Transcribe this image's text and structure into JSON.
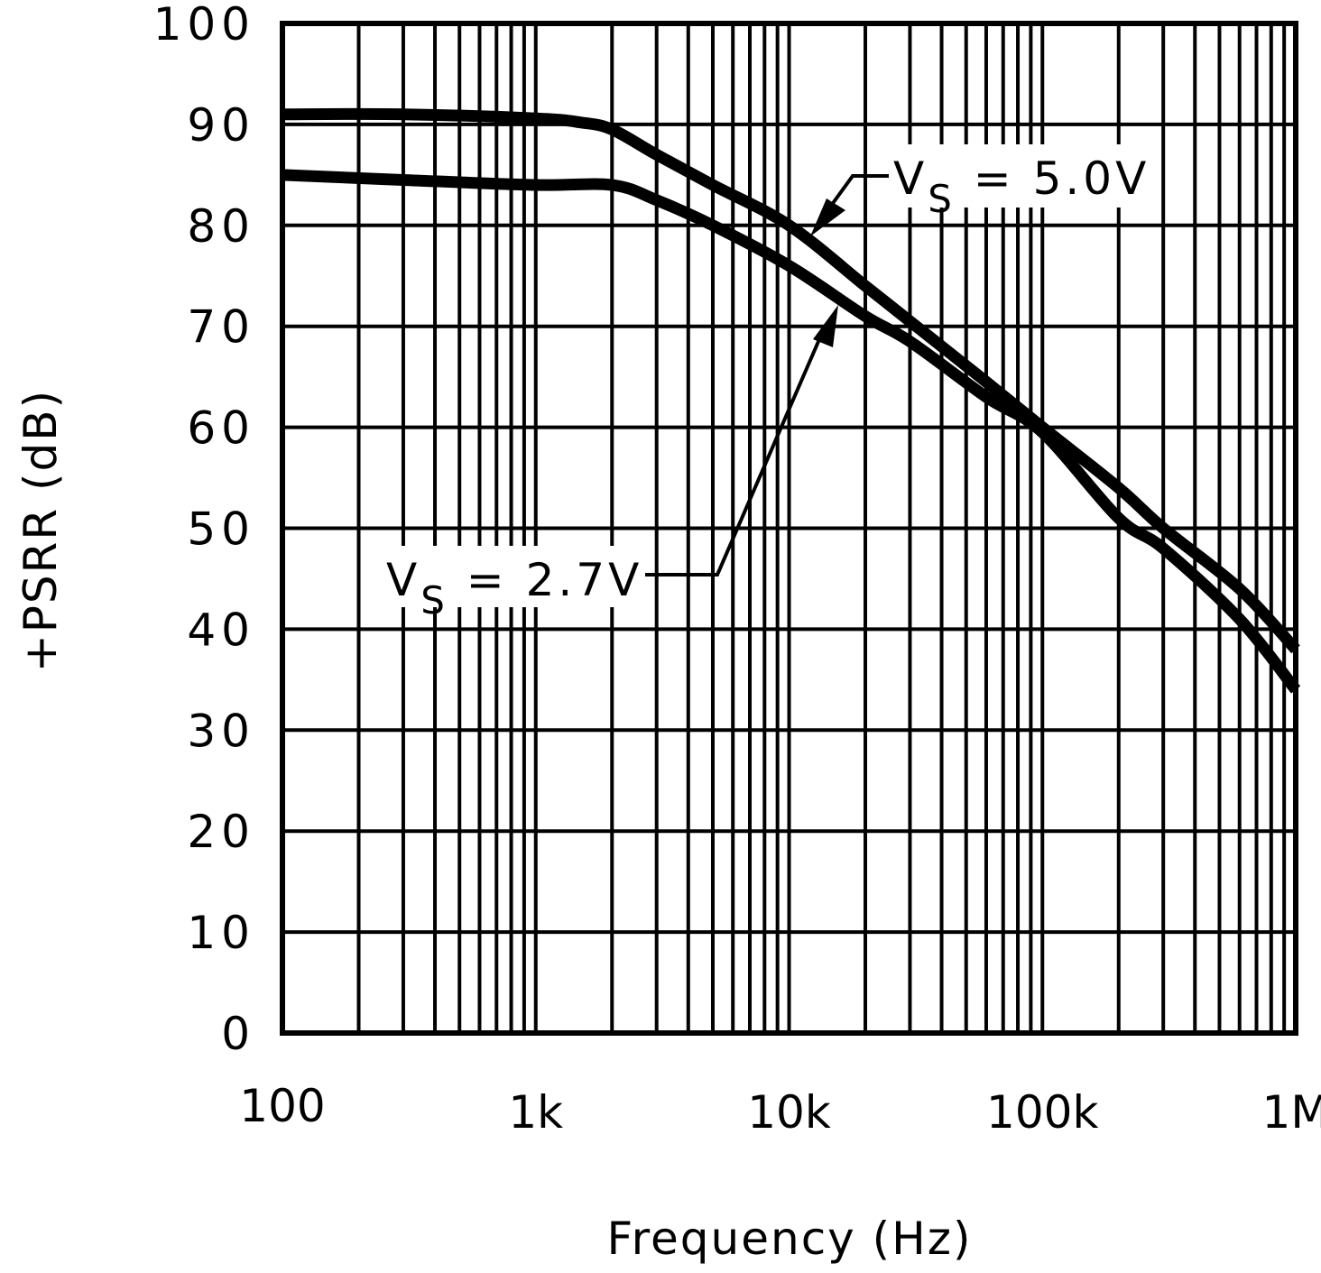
{
  "chart_data": {
    "type": "line",
    "title": "",
    "xlabel": "Frequency (Hz)",
    "ylabel": "+PSRR (dB)",
    "xscale": "log",
    "xlim": [
      100,
      1000000
    ],
    "ylim": [
      0,
      100
    ],
    "grid": true,
    "x_ticks": [
      100,
      1000,
      10000,
      100000,
      1000000
    ],
    "x_tick_labels": [
      "100",
      "1k",
      "10k",
      "100k",
      "1M"
    ],
    "y_ticks": [
      0,
      10,
      20,
      30,
      40,
      50,
      60,
      70,
      80,
      90,
      100
    ],
    "y_tick_labels": [
      "0",
      "10",
      "20",
      "30",
      "40",
      "50",
      "60",
      "70",
      "80",
      "90",
      "100"
    ],
    "series": [
      {
        "name": "VS = 5.0V",
        "x": [
          100,
          300,
          1000,
          1500,
          2000,
          3000,
          5000,
          10000,
          20000,
          30000,
          60000,
          100000,
          200000,
          300000,
          600000,
          1000000
        ],
        "values": [
          91,
          91,
          90.6,
          90.2,
          89.5,
          87,
          84,
          80,
          74,
          70.5,
          64.5,
          60,
          54,
          50,
          44,
          38
        ]
      },
      {
        "name": "VS = 2.7V",
        "x": [
          100,
          300,
          1000,
          2000,
          3000,
          5000,
          10000,
          20000,
          30000,
          60000,
          100000,
          200000,
          300000,
          600000,
          1000000
        ],
        "values": [
          85,
          84.5,
          84,
          84,
          82.5,
          80,
          76,
          71,
          68.5,
          63,
          59.5,
          51,
          48,
          41,
          34
        ]
      }
    ],
    "annotations": [
      {
        "series": "VS = 5.0V",
        "text_main": "V",
        "text_sub": "S",
        "text_rest": " = 5.0V",
        "arrow_to": [
          13000,
          79
        ]
      },
      {
        "series": "VS = 2.7V",
        "text_main": "V",
        "text_sub": "S",
        "text_rest": " = 2.7V",
        "arrow_to": [
          17000,
          72.5
        ]
      }
    ]
  },
  "labels": {
    "xlabel": "Frequency (Hz)",
    "ylabel": "+PSRR (dB)",
    "ann_5v_main": "V",
    "ann_5v_sub": "S",
    "ann_5v_rest": " = 5.0V",
    "ann_27v_main": "V",
    "ann_27v_sub": "S",
    "ann_27v_rest": " = 2.7V"
  },
  "colors": {
    "line": "#000000",
    "grid": "#000000",
    "background": "#ffffff"
  }
}
